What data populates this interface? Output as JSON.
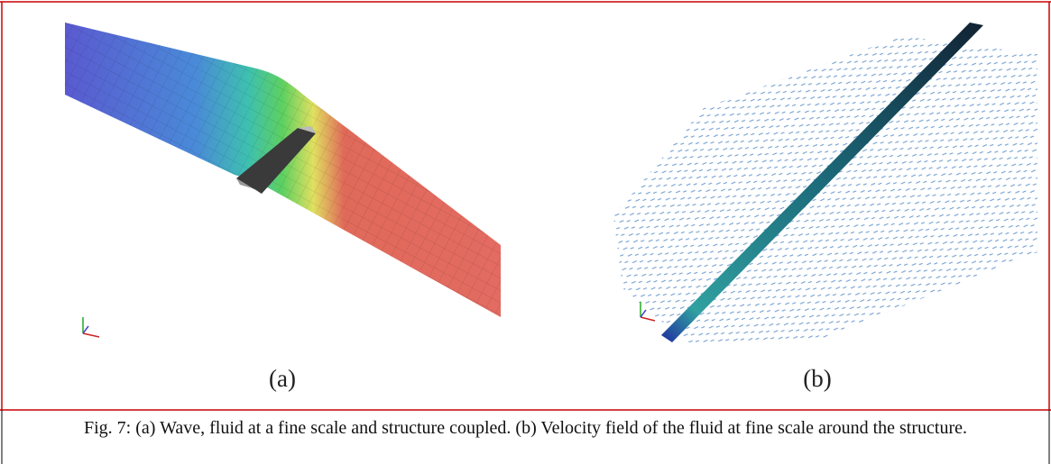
{
  "figure": {
    "panels": [
      {
        "label": "(a)"
      },
      {
        "label": "(b)"
      }
    ],
    "caption": "Fig. 7: (a) Wave, fluid at a fine scale and structure coupled. (b) Velocity field of the fluid at fine scale around the structure."
  }
}
